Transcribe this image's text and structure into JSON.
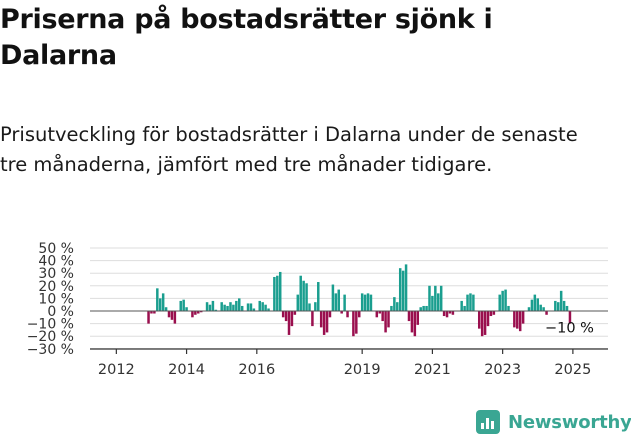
{
  "title": "Priserna på bostadsrätter sjönk i Dalarna",
  "subtitle": "Prisutveckling för bostadsrätter i Dalarna under de senaste tre månaderna, jämfört med tre månader tidigare.",
  "brand": {
    "name": "Newsworthy",
    "color": "#3aa693"
  },
  "chart_data": {
    "type": "bar",
    "title": "",
    "xlabel": "",
    "ylabel": "",
    "ylim": [
      -30,
      50
    ],
    "y_ticks": [
      "50 %",
      "40 %",
      "30 %",
      "20 %",
      "10 %",
      "0 %",
      "−10 %",
      "−20 %",
      "−30 %"
    ],
    "y_tick_values": [
      50,
      40,
      30,
      20,
      10,
      0,
      -10,
      -20,
      -30
    ],
    "x_ticks": [
      "2012",
      "2014",
      "2016",
      "2019",
      "2021",
      "2023",
      "2025"
    ],
    "x_tick_years": [
      2012,
      2014,
      2016,
      2019,
      2021,
      2023,
      2025
    ],
    "x_range": [
      2011.25,
      2026.0
    ],
    "grid": true,
    "colors": {
      "positive": "#1a9e8f",
      "negative": "#9a0f4e",
      "axis": "#333333",
      "grid": "#dddddd"
    },
    "annotation": "−10 %",
    "start": "2011-01",
    "step_months": 1,
    "values": [
      0,
      0,
      0,
      0,
      0,
      0,
      0,
      0,
      0,
      0,
      0,
      0,
      0,
      0,
      0,
      0,
      0,
      0,
      0,
      0,
      0,
      0,
      0,
      -10,
      -2,
      -2,
      18,
      10,
      14,
      3,
      -5,
      -7,
      -10,
      0,
      8,
      9,
      3,
      0,
      -5,
      -3,
      -2,
      -1,
      0,
      7,
      5,
      8,
      1,
      0,
      7,
      5,
      4,
      7,
      5,
      8,
      10,
      4,
      0,
      6,
      6,
      2,
      0,
      8,
      7,
      5,
      2,
      0,
      27,
      28,
      31,
      -5,
      -8,
      -19,
      -12,
      -3,
      13,
      28,
      24,
      22,
      6,
      -12,
      7,
      23,
      -13,
      -19,
      -17,
      -5,
      21,
      14,
      17,
      -2,
      13,
      -5,
      0,
      -20,
      -18,
      -5,
      14,
      13,
      14,
      13,
      0,
      -5,
      -2,
      -8,
      -17,
      -13,
      4,
      11,
      7,
      34,
      32,
      37,
      -8,
      -17,
      -20,
      -11,
      3,
      4,
      4,
      20,
      12,
      20,
      14,
      20,
      -4,
      -5,
      -2,
      -3,
      0,
      0,
      8,
      4,
      13,
      14,
      13,
      0,
      -14,
      -20,
      -19,
      -12,
      -4,
      -3,
      0,
      13,
      16,
      17,
      4,
      0,
      -13,
      -14,
      -16,
      -10,
      0,
      3,
      9,
      13,
      10,
      5,
      3,
      -3,
      0,
      0,
      8,
      7,
      16,
      8,
      4,
      -10
    ]
  }
}
